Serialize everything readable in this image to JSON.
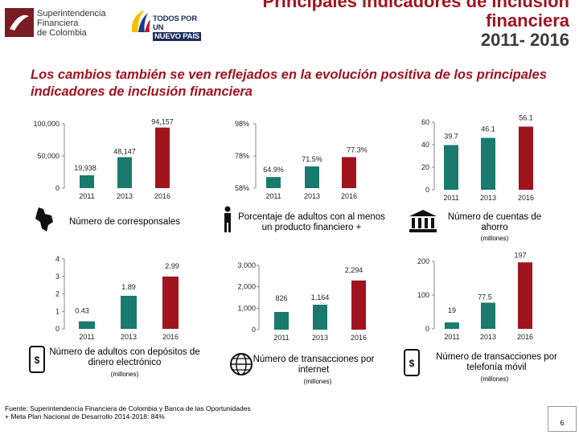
{
  "header": {
    "logo_sfc_lines": [
      "Superintendencia",
      "Financiera",
      "de Colombia"
    ],
    "logo_tpp_line1": "TODOS POR UN",
    "logo_tpp_line2": "NUEVO PAÍS",
    "title_line1": "Principales indicadores de inclusión",
    "title_line2": "financiera",
    "title_line3": "2011- 2016"
  },
  "subtitle": "Los cambios también se ven reflejados en la evolución positiva de los principales indicadores de inclusión financiera",
  "colors": {
    "teal": "#1a7a6e",
    "red": "#a0141e",
    "title": "#a0141e"
  },
  "chart_data": [
    {
      "type": "bar",
      "title": "Número de corresponsales",
      "units": "",
      "categories": [
        "2011",
        "2013",
        "2016"
      ],
      "values": [
        19938,
        48147,
        94157
      ],
      "value_labels": [
        "19,938",
        "48,147",
        "94,157"
      ],
      "yticks": [
        "0",
        "50,000",
        "100,000"
      ],
      "ylim": [
        0,
        100000
      ]
    },
    {
      "type": "bar",
      "title": "Porcentaje de adultos con al menos un producto financiero +",
      "units": "",
      "categories": [
        "2011",
        "2013",
        "2016"
      ],
      "values": [
        64.9,
        71.5,
        77.3
      ],
      "value_labels": [
        "64.9%",
        "71.5%",
        "77.3%"
      ],
      "yticks": [
        "58%",
        "78%",
        "98%"
      ],
      "ylim": [
        58,
        98
      ]
    },
    {
      "type": "bar",
      "title": "Número de cuentas de ahorro",
      "units": "(millones)",
      "categories": [
        "2011",
        "2013",
        "2016"
      ],
      "values": [
        39.7,
        46.1,
        56.1
      ],
      "value_labels": [
        "39.7",
        "46.1",
        "56.1"
      ],
      "yticks": [
        "0",
        "20",
        "40",
        "60"
      ],
      "ylim": [
        0,
        60
      ]
    },
    {
      "type": "bar",
      "title": "Número de adultos con depósitos de dinero electrónico",
      "units": "(millones)",
      "categories": [
        "2011",
        "2013",
        "2016"
      ],
      "values": [
        0.43,
        1.89,
        2.99
      ],
      "value_labels": [
        "0.43",
        "1.89",
        "2.99"
      ],
      "yticks": [
        "0",
        "1",
        "2",
        "3",
        "4"
      ],
      "ylim": [
        0,
        4
      ]
    },
    {
      "type": "bar",
      "title": "Número de transacciones por internet",
      "units": "(millones)",
      "categories": [
        "2011",
        "2013",
        "2016"
      ],
      "values": [
        826,
        1164,
        2294
      ],
      "value_labels": [
        "826",
        "1,164",
        "2,294"
      ],
      "yticks": [
        "0",
        "1,000",
        "2,000",
        "3,000"
      ],
      "ylim": [
        0,
        3000
      ]
    },
    {
      "type": "bar",
      "title": "Número de transacciones por telefonía móvil",
      "units": "(millones)",
      "categories": [
        "2011",
        "2013",
        "2016"
      ],
      "values": [
        19,
        77.5,
        197
      ],
      "value_labels": [
        "19",
        "77.5",
        "197"
      ],
      "yticks": [
        "0",
        "100",
        "200"
      ],
      "ylim": [
        0,
        200
      ]
    }
  ],
  "footer": {
    "line1": "Fuente: Superintendencia Financiera de Colombia y Banca de las Oportunidades",
    "line2": "+ Meta Plan Nacional de Desarrollo 2014-2018: 84%"
  },
  "page_number": "6"
}
